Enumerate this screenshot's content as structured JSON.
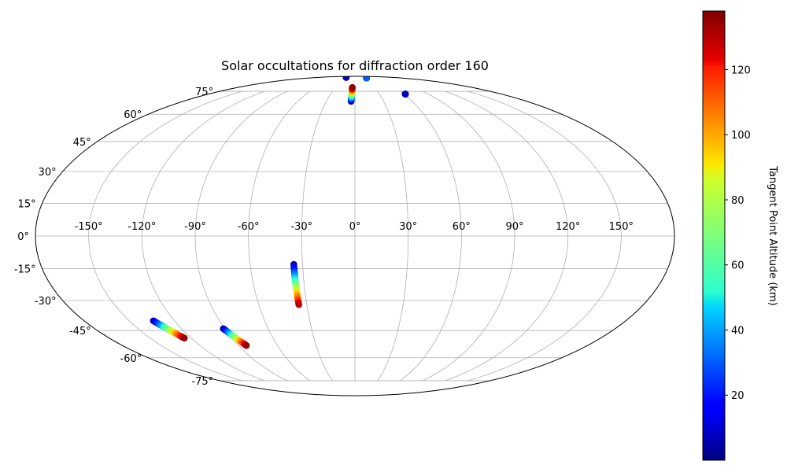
{
  "chart_data": {
    "type": "scatter",
    "projection": "mollweide",
    "title": "Solar occultations for diffraction order 160",
    "grid": true,
    "lon_ticks": [
      -150,
      -120,
      -90,
      -60,
      -30,
      0,
      30,
      60,
      90,
      120,
      150
    ],
    "lon_tick_labels": [
      "-150°",
      "-120°",
      "-90°",
      "-60°",
      "-30°",
      "0°",
      "30°",
      "60°",
      "90°",
      "120°",
      "150°"
    ],
    "lat_ticks": [
      -75,
      -60,
      -45,
      -30,
      -15,
      0,
      15,
      30,
      45,
      60,
      75
    ],
    "lat_tick_labels": [
      "-75°",
      "-60°",
      "-45°",
      "-30°",
      "-15°",
      "0°",
      "15°",
      "30°",
      "45°",
      "60°",
      "75°"
    ],
    "colorbar": {
      "label": "Tangent Point Altitude (km)",
      "colormap": "jet",
      "range": [
        0,
        138
      ],
      "ticks": [
        20,
        40,
        60,
        80,
        100,
        120
      ],
      "tick_labels": [
        "20",
        "40",
        "60",
        "80",
        "100",
        "120"
      ]
    },
    "series": [
      {
        "lon": [
          -44,
          -44
        ],
        "lat": [
          88,
          88
        ],
        "alt": [
          3,
          8
        ]
      },
      {
        "lon": [
          -4,
          -4
        ],
        "lat": [
          68,
          78
        ],
        "alt": [
          2,
          135
        ]
      },
      {
        "lon": [
          44,
          44
        ],
        "lat": [
          87,
          87
        ],
        "alt": [
          5,
          30
        ]
      },
      {
        "lon": [
          62,
          62
        ],
        "lat": [
          73,
          73
        ],
        "alt": [
          3,
          8
        ]
      },
      {
        "lon": [
          -35,
          -35
        ],
        "lat": [
          -13,
          -32
        ],
        "alt": [
          3,
          130
        ]
      },
      {
        "lon": [
          -134,
          -125
        ],
        "lat": [
          -40,
          -49
        ],
        "alt": [
          5,
          135
        ]
      },
      {
        "lon": [
          -91,
          -84
        ],
        "lat": [
          -44,
          -53
        ],
        "alt": [
          3,
          135
        ]
      }
    ]
  }
}
